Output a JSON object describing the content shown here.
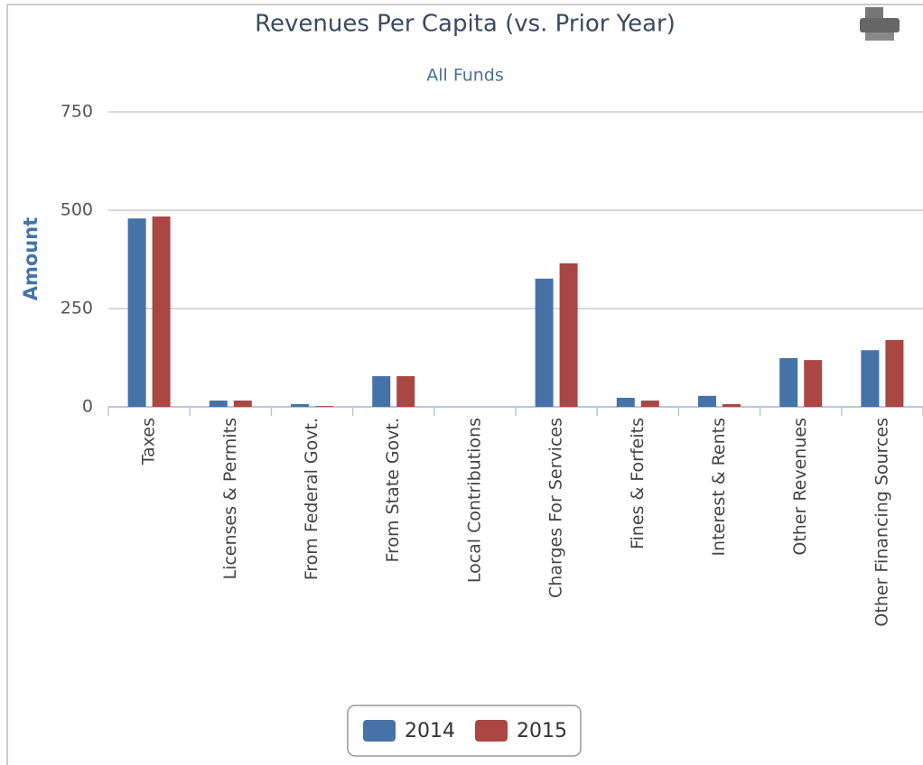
{
  "chart_data": {
    "type": "bar",
    "title": "Revenues Per Capita (vs. Prior Year)",
    "subtitle": "All Funds",
    "y_label": "Amount",
    "categories": [
      "Taxes",
      "Licenses & Permits",
      "From Federal Govt.",
      "From State Govt.",
      "Local Contributions",
      "Charges For Services",
      "Fines & Forfeits",
      "Interest & Rents",
      "Other Revenues",
      "Other Financing Sources"
    ],
    "series": [
      {
        "name": "2014",
        "color": "#4572a7",
        "values": [
          479,
          16,
          7,
          78,
          0,
          326,
          23,
          28,
          124,
          144
        ]
      },
      {
        "name": "2015",
        "color": "#aa4643",
        "values": [
          484,
          16,
          2,
          78,
          0,
          365,
          16,
          7,
          119,
          170
        ]
      }
    ],
    "ylim": [
      0,
      750
    ],
    "yticks": [
      0,
      250,
      500,
      750
    ],
    "grid": true,
    "legend": "bottom"
  }
}
